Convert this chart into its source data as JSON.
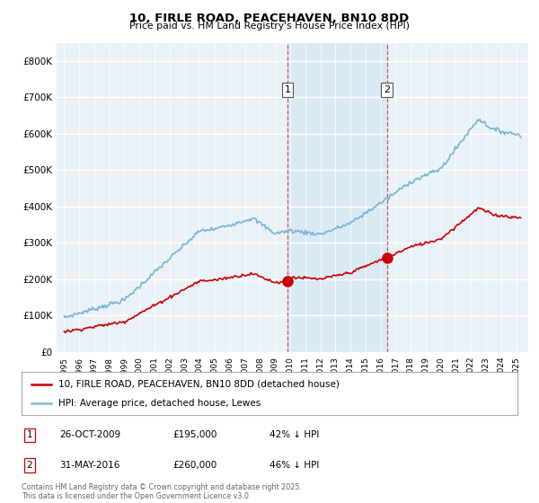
{
  "title": "10, FIRLE ROAD, PEACEHAVEN, BN10 8DD",
  "subtitle": "Price paid vs. HM Land Registry's House Price Index (HPI)",
  "legend_house": "10, FIRLE ROAD, PEACEHAVEN, BN10 8DD (detached house)",
  "legend_hpi": "HPI: Average price, detached house, Lewes",
  "footnote": "Contains HM Land Registry data © Crown copyright and database right 2025.\nThis data is licensed under the Open Government Licence v3.0.",
  "transactions": [
    {
      "label": "1",
      "date": "26-OCT-2009",
      "price": 195000,
      "hpi_pct": "42% ↓ HPI",
      "x": 2009.82
    },
    {
      "label": "2",
      "date": "31-MAY-2016",
      "price": 260000,
      "hpi_pct": "46% ↓ HPI",
      "x": 2016.42
    }
  ],
  "house_color": "#cc0000",
  "hpi_color": "#7ab8d9",
  "shade_color": "#daeaf5",
  "background_color": "#eaf2f8",
  "ylim": [
    0,
    850000
  ],
  "xlim": [
    1994.5,
    2025.8
  ]
}
